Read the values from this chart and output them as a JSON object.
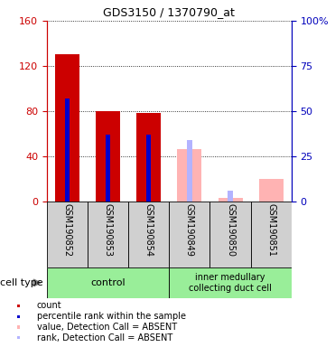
{
  "title": "GDS3150 / 1370790_at",
  "samples": [
    "GSM190852",
    "GSM190853",
    "GSM190854",
    "GSM190849",
    "GSM190850",
    "GSM190851"
  ],
  "count_values": [
    130,
    80,
    78,
    0,
    0,
    0
  ],
  "percentile_values": [
    57,
    37,
    37,
    0,
    0,
    0
  ],
  "absent_value_values": [
    0,
    0,
    0,
    46,
    3,
    20
  ],
  "absent_rank_values": [
    0,
    0,
    0,
    34,
    6,
    0
  ],
  "ylim_left": [
    0,
    160
  ],
  "ylim_right": [
    0,
    100
  ],
  "yticks_left": [
    0,
    40,
    80,
    120,
    160
  ],
  "yticks_right": [
    0,
    25,
    50,
    75,
    100
  ],
  "left_axis_color": "#cc0000",
  "right_axis_color": "#0000bb",
  "count_color": "#cc0000",
  "percentile_color": "#0000cc",
  "absent_value_color": "#ffb3b3",
  "absent_rank_color": "#b3b3ff",
  "bg_gray": "#d0d0d0",
  "bg_green": "#99ee99",
  "legend_count": "count",
  "legend_percentile": "percentile rank within the sample",
  "legend_absent_value": "value, Detection Call = ABSENT",
  "legend_absent_rank": "rank, Detection Call = ABSENT",
  "group1_label": "control",
  "group2_label": "inner medullary\ncollecting duct cell",
  "cell_type_label": "cell type"
}
